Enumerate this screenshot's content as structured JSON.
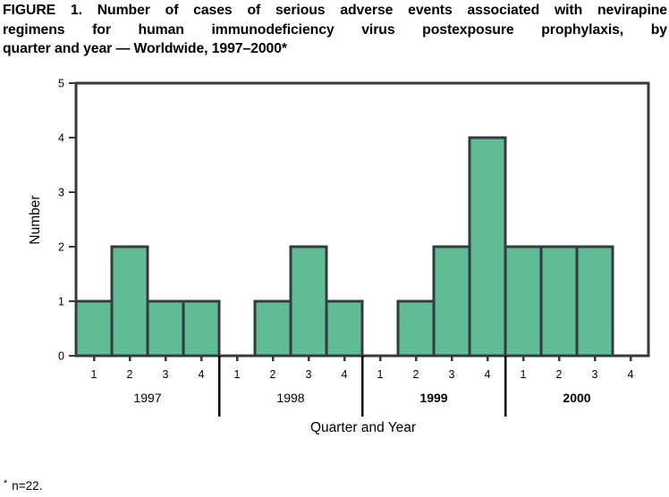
{
  "title": {
    "lines": [
      "FIGURE 1. Number of cases of serious adverse events associated with nevirapine",
      "regimens for human immunodeficiency virus postexposure prophylaxis, by",
      "quarter and year — Worldwide, 1997–2000*"
    ]
  },
  "footnote": {
    "marker": "*",
    "text": "n=22."
  },
  "chart_data": {
    "type": "bar",
    "title": "FIGURE 1. Number of cases of serious adverse events associated with nevirapine regimens for human immunodeficiency virus postexposure prophylaxis, by quarter and year — Worldwide, 1997–2000*",
    "xlabel": "Quarter and Year",
    "ylabel": "Number",
    "ylim": [
      0,
      5
    ],
    "yticks": [
      0,
      1,
      2,
      3,
      4,
      5
    ],
    "quarter_labels": [
      "1",
      "2",
      "3",
      "4"
    ],
    "groups": [
      {
        "year": "1997",
        "values": [
          1,
          2,
          1,
          1
        ],
        "bold": false
      },
      {
        "year": "1998",
        "values": [
          0,
          1,
          2,
          1
        ],
        "bold": false
      },
      {
        "year": "1999",
        "values": [
          0,
          1,
          2,
          4
        ],
        "bold": true
      },
      {
        "year": "2000",
        "values": [
          2,
          2,
          2,
          0
        ],
        "bold": true
      }
    ],
    "n": 22,
    "grid": false,
    "legend": "none",
    "bar_color": "#5fbc95",
    "axis_color": "#333b40",
    "text_color": "#000000"
  }
}
